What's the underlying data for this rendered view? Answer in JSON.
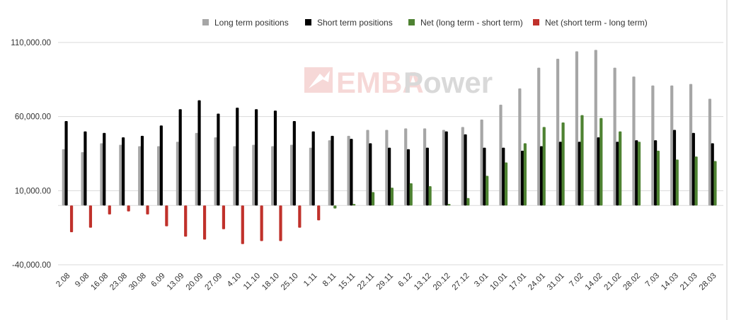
{
  "chart_data": {
    "type": "bar",
    "title": "",
    "xlabel": "",
    "ylabel": "",
    "ylim": [
      -40000,
      110000
    ],
    "y_ticks": [
      -40000,
      10000,
      60000,
      110000
    ],
    "y_tick_labels": [
      "-40,000.00",
      "10,000.00",
      "60,000.00",
      "110,000.00"
    ],
    "grid": true,
    "legend_position": "top",
    "categories": [
      "2.08",
      "9.08",
      "16.08",
      "23.08",
      "30.08",
      "6.09",
      "13.09",
      "20.09",
      "27.09",
      "4.10",
      "11.10",
      "18.10",
      "25.10",
      "1.11",
      "8.11",
      "15.11",
      "22.11",
      "29.11",
      "6.12",
      "13.12",
      "20.12",
      "27.12",
      "3.01",
      "10.01",
      "17.01",
      "24.01",
      "31.01",
      "7.02",
      "14.02",
      "21.02",
      "28.02",
      "7.03",
      "14.03",
      "21.03",
      "28.03"
    ],
    "series": [
      {
        "name": "Long term positions",
        "color": "#a6a6a6",
        "values": [
          38000,
          36000,
          42000,
          41000,
          40000,
          40000,
          43000,
          49000,
          46000,
          40000,
          41000,
          40000,
          41000,
          39000,
          44000,
          47000,
          51000,
          51000,
          52000,
          52000,
          51000,
          53000,
          58000,
          68000,
          79000,
          93000,
          99000,
          104000,
          105000,
          93000,
          87000,
          81000,
          81000,
          82000,
          72000
        ]
      },
      {
        "name": "Short term positions",
        "color": "#000000",
        "values": [
          57000,
          50000,
          49000,
          46000,
          47000,
          54000,
          65000,
          71000,
          62000,
          66000,
          65000,
          64000,
          57000,
          50000,
          47000,
          45000,
          42000,
          39000,
          38000,
          39000,
          50000,
          48000,
          39000,
          39000,
          37000,
          40000,
          43000,
          43000,
          46000,
          43000,
          44000,
          44000,
          51000,
          49000,
          42000
        ]
      },
      {
        "name": "Net (long term - short term)",
        "color": "#4e8232",
        "values": [
          0,
          0,
          0,
          0,
          0,
          0,
          0,
          0,
          0,
          0,
          0,
          0,
          0,
          0,
          -2000,
          1000,
          9000,
          12000,
          15000,
          13000,
          1000,
          5000,
          20000,
          29000,
          42000,
          53000,
          56000,
          61000,
          59000,
          50000,
          43000,
          37000,
          31000,
          33000,
          30000
        ]
      },
      {
        "name": "Net (short term - long term)",
        "color": "#c0312b",
        "values": [
          -18000,
          -15000,
          -6000,
          -4000,
          -6000,
          -14000,
          -21000,
          -23000,
          -16000,
          -26000,
          -24000,
          -24000,
          -15000,
          -10000,
          0,
          0,
          0,
          0,
          0,
          0,
          0,
          0,
          0,
          0,
          0,
          0,
          0,
          0,
          0,
          0,
          0,
          0,
          0,
          0,
          0
        ]
      }
    ]
  },
  "watermark": {
    "text_left": "EMBA",
    "text_right": "Power"
  },
  "colors": {
    "grid": "#d9d9d9",
    "zero_line": "#d9d9d9",
    "axis": "#cccccc"
  },
  "icons": {
    "watermark_logo": "emba-power-logo"
  }
}
